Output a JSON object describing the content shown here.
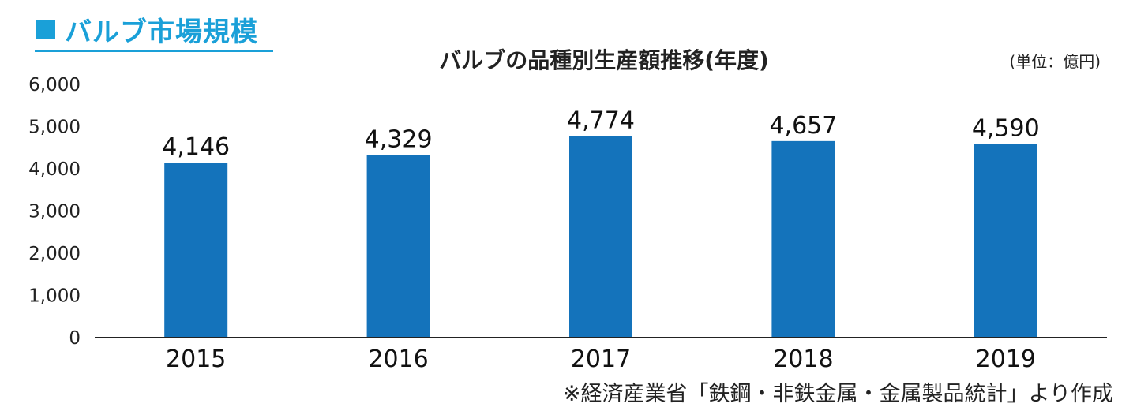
{
  "section": {
    "marker": "■",
    "title": "バルブ市場規模"
  },
  "chart_data": {
    "type": "bar",
    "title": "バルブの品種別生産額推移(年度)",
    "unit": "(単位：億円)",
    "categories": [
      "2015",
      "2016",
      "2017",
      "2018",
      "2019"
    ],
    "values": [
      4146,
      4329,
      4774,
      4657,
      4590
    ],
    "data_labels": [
      "4,146",
      "4,329",
      "4,774",
      "4,657",
      "4,590"
    ],
    "ylim": [
      0,
      6000
    ],
    "yticks": [
      0,
      1000,
      2000,
      3000,
      4000,
      5000,
      6000
    ],
    "ytick_labels": [
      "0",
      "1,000",
      "2,000",
      "3,000",
      "4,000",
      "5,000",
      "6,000"
    ],
    "bar_color": "#1473bb",
    "grid": false,
    "legend": "none",
    "xlabel": "",
    "ylabel": ""
  },
  "source_note": "※経済産業省「鉄鋼・非鉄金属・金属製品統計」より作成",
  "colors": {
    "accent": "#1aa0d8",
    "bar": "#1473bb"
  }
}
